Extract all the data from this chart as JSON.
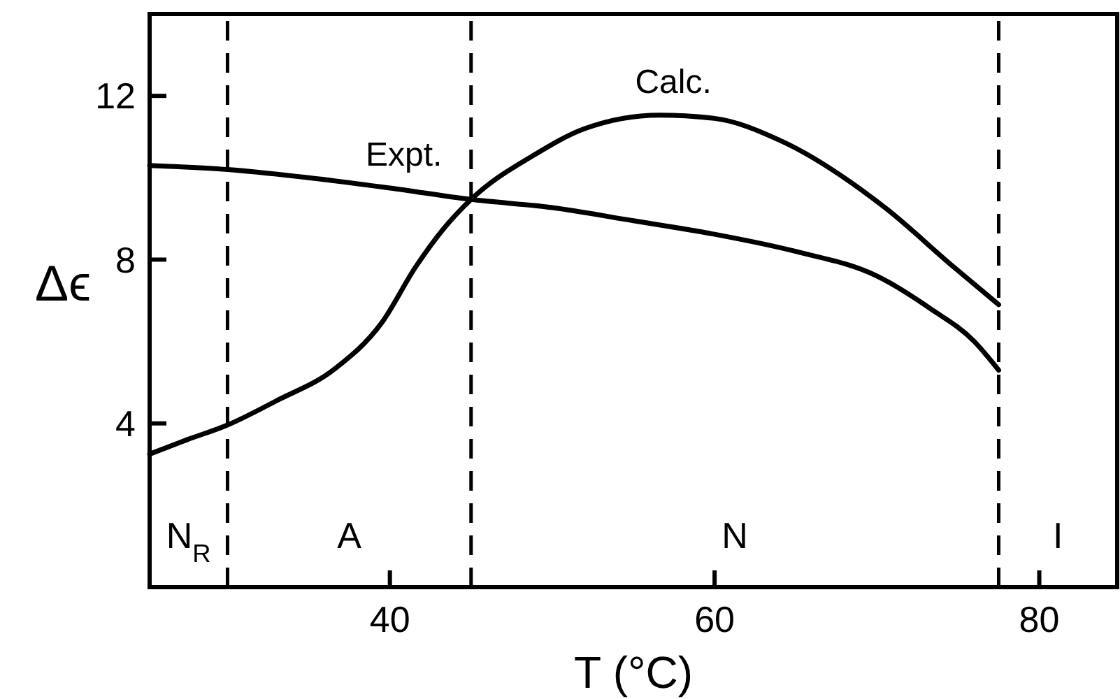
{
  "chart_data": {
    "type": "line",
    "xlabel": "T (°C)",
    "ylabel": "Δϵ",
    "xlim": [
      25.2,
      84.8
    ],
    "ylim": [
      0,
      14
    ],
    "xticks": [
      40,
      60,
      80
    ],
    "yticks": [
      4,
      8,
      12
    ],
    "grid": false,
    "legend": false,
    "marker": "none",
    "line_style": "solid",
    "series": [
      {
        "name": "Expt.",
        "color": "#000000",
        "x": [
          25.2,
          30,
          35,
          40,
          45,
          50,
          55,
          60,
          65,
          70,
          73.3,
          76,
          77.5
        ],
        "values": [
          10.3,
          10.2,
          10.0,
          9.75,
          9.47,
          9.27,
          8.95,
          8.62,
          8.2,
          7.6,
          6.8,
          6.0,
          5.3
        ]
      },
      {
        "name": "Calc.",
        "color": "#000000",
        "x": [
          25.2,
          27.5,
          30,
          33,
          36.6,
          39.5,
          41.6,
          43.3,
          45,
          48.9,
          52,
          56.6,
          60,
          64.1,
          70.4,
          74.7,
          77.5
        ],
        "values": [
          3.25,
          3.6,
          3.96,
          4.55,
          5.33,
          6.46,
          7.83,
          8.75,
          9.47,
          10.56,
          11.2,
          11.53,
          11.45,
          10.9,
          9.3,
          7.83,
          6.9
        ]
      }
    ],
    "ref_lines": [
      {
        "axis": "x",
        "value": 30,
        "line_style": "dashed"
      },
      {
        "axis": "x",
        "value": 45,
        "line_style": "dashed"
      },
      {
        "axis": "x",
        "value": 77.5,
        "line_style": "dashed"
      }
    ],
    "annotations": [
      "N$_{R}$",
      "A",
      "N",
      "I"
    ]
  }
}
